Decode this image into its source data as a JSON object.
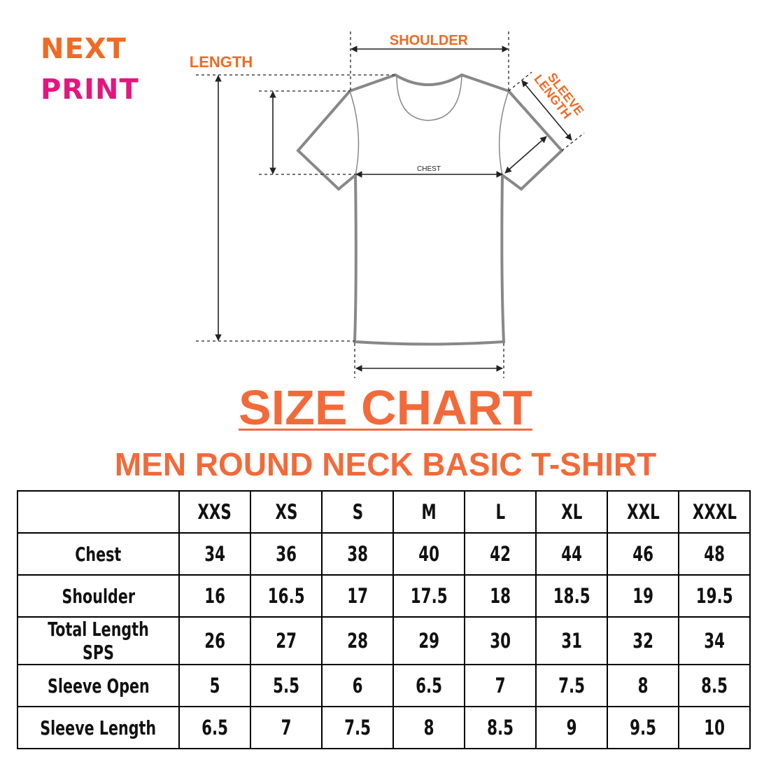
{
  "logo": {
    "line1": "NEXT",
    "line2": "PRINT",
    "colors": {
      "orange": "#ef6a24",
      "pink": "#e5157f"
    }
  },
  "diagram": {
    "shoulder_label": "SHOULDER",
    "length_label": "LENGTH",
    "sleeve_label_line1": "SLEEVE",
    "sleeve_label_line2": "LENGTH",
    "chest_label": "CHEST"
  },
  "title": "SIZE CHART",
  "subtitle": "MEN ROUND NECK BASIC T-SHIRT",
  "accent_color": "#f26a3a",
  "table": {
    "headers": [
      "",
      "XXS",
      "XS",
      "S",
      "M",
      "L",
      "XL",
      "XXL",
      "XXXL"
    ],
    "rows": [
      {
        "label": "Chest",
        "values": [
          "34",
          "36",
          "38",
          "40",
          "42",
          "44",
          "46",
          "48"
        ]
      },
      {
        "label": "Shoulder",
        "values": [
          "16",
          "16.5",
          "17",
          "17.5",
          "18",
          "18.5",
          "19",
          "19.5"
        ]
      },
      {
        "label": "Total Length SPS",
        "values": [
          "26",
          "27",
          "28",
          "29",
          "30",
          "31",
          "32",
          "34"
        ]
      },
      {
        "label": "Sleeve Open",
        "values": [
          "5",
          "5.5",
          "6",
          "6.5",
          "7",
          "7.5",
          "8",
          "8.5"
        ]
      },
      {
        "label": "Sleeve Length",
        "values": [
          "6.5",
          "7",
          "7.5",
          "8",
          "8.5",
          "9",
          "9.5",
          "10"
        ]
      }
    ]
  }
}
